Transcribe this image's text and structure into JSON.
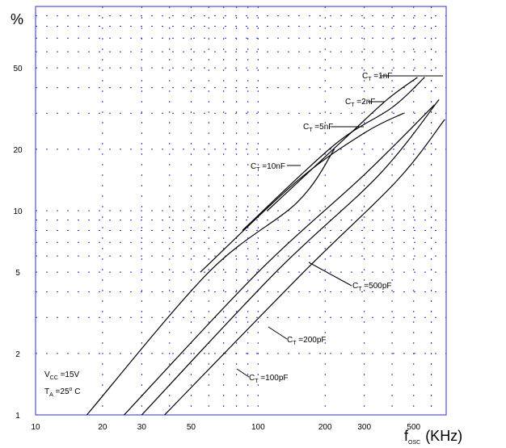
{
  "chart_data": {
    "type": "line",
    "y_unit": "%",
    "x_label": {
      "main": "f",
      "sub": "OSC",
      "unit": "(KHz)"
    },
    "x_scale": "log",
    "y_scale": "log",
    "xlim": [
      10,
      700
    ],
    "ylim": [
      1,
      100
    ],
    "x_ticks": [
      10,
      20,
      30,
      50,
      100,
      200,
      300,
      500
    ],
    "y_ticks": [
      1,
      2,
      5,
      10,
      20,
      50
    ],
    "grid": true,
    "conditions": {
      "vcc": {
        "main": "V",
        "sub": "CC",
        "rest": " =15V"
      },
      "ta": {
        "main": "T",
        "sub": "A",
        "rest": " =25",
        "sup": "o",
        "unit": " C"
      }
    },
    "series": [
      {
        "name": "CT=1nF",
        "label": {
          "main": "C",
          "sub": "T",
          "rest": " =1nF"
        },
        "points": [
          [
            110,
            10
          ],
          [
            250,
            23
          ],
          [
            380,
            35
          ],
          [
            520,
            45
          ]
        ]
      },
      {
        "name": "CT=2nF",
        "label": {
          "main": "C",
          "sub": "T",
          "rest": " =2nF"
        },
        "points": [
          [
            85,
            8
          ],
          [
            220,
            21
          ],
          [
            400,
            32
          ],
          [
            560,
            45
          ]
        ]
      },
      {
        "name": "CT=5nF",
        "label": {
          "main": "C",
          "sub": "T",
          "rest": " =5nF"
        },
        "points": [
          [
            55,
            5
          ],
          [
            150,
            14
          ],
          [
            300,
            24
          ],
          [
            450,
            30
          ]
        ]
      },
      {
        "name": "CT=10nF",
        "label": {
          "main": "C",
          "sub": "T",
          "rest": " =10nF"
        },
        "points": [
          [
            17,
            1
          ],
          [
            60,
            5
          ],
          [
            150,
            11
          ],
          [
            220,
            20
          ]
        ]
      },
      {
        "name": "CT=500pF",
        "label": {
          "main": "C",
          "sub": "T",
          "rest": " =500pF"
        },
        "points": [
          [
            25,
            1
          ],
          [
            100,
            5
          ],
          [
            300,
            15
          ],
          [
            620,
            33
          ]
        ]
      },
      {
        "name": "CT=200pF",
        "label": {
          "main": "C",
          "sub": "T",
          "rest": " =200pF"
        },
        "points": [
          [
            30,
            1
          ],
          [
            120,
            5
          ],
          [
            350,
            15
          ],
          [
            650,
            35
          ]
        ]
      },
      {
        "name": "CT=100pF",
        "label": {
          "main": "C",
          "sub": "T",
          "rest": " =100pF"
        },
        "points": [
          [
            38,
            1
          ],
          [
            160,
            5
          ],
          [
            420,
            14
          ],
          [
            690,
            28
          ]
        ]
      }
    ]
  }
}
